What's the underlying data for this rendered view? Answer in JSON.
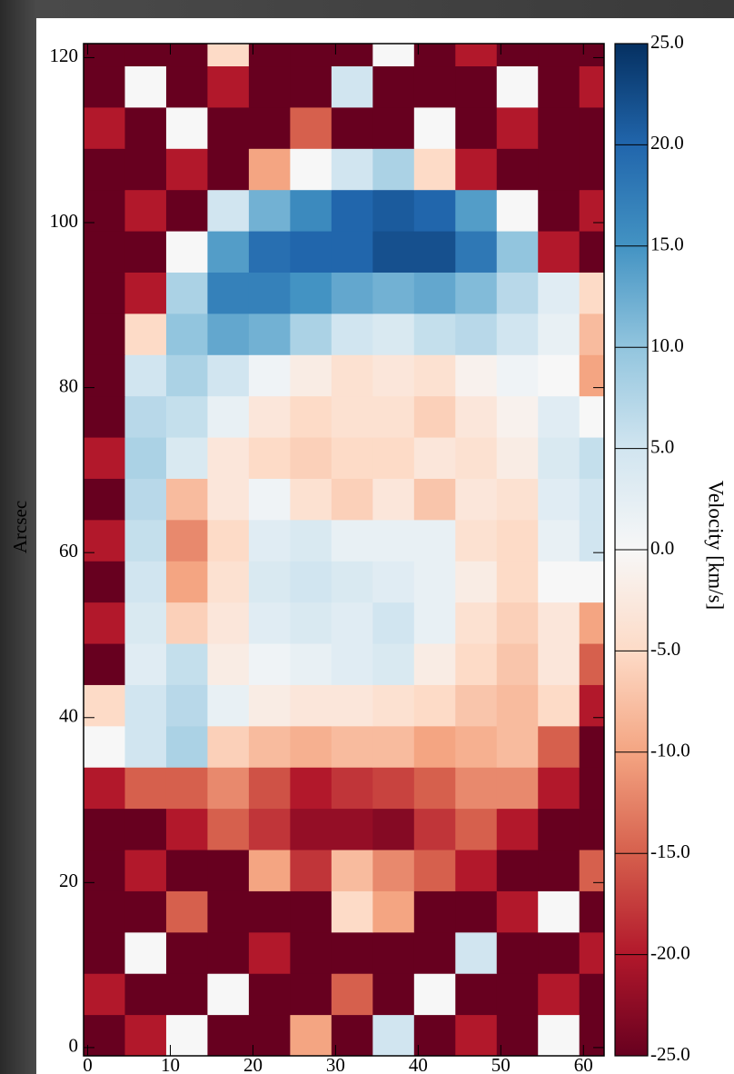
{
  "chart_data": {
    "type": "heatmap",
    "ylabel": "Arcsec",
    "colorbar_label": "Velocity [km/s]",
    "xlim": [
      -0.5,
      62.5
    ],
    "ylim": [
      -1,
      121.7
    ],
    "xticks": [
      0,
      10,
      20,
      30,
      40,
      50,
      60
    ],
    "yticks": [
      0,
      20,
      40,
      60,
      80,
      100,
      120
    ],
    "xbins": [
      -0.5,
      4.5,
      9.5,
      14.5,
      19.5,
      24.5,
      29.5,
      34.5,
      39.5,
      44.5,
      49.5,
      54.5,
      59.5,
      62.5
    ],
    "ybins": [
      -1,
      4,
      9,
      14,
      19,
      24,
      29,
      34,
      39,
      44,
      49,
      54,
      59,
      64,
      69,
      74,
      79,
      84,
      89,
      94,
      99,
      104,
      109,
      114,
      119,
      121.7
    ],
    "clim": [
      -25,
      25
    ],
    "cticks": [
      {
        "value": -25,
        "label": "-25.0"
      },
      {
        "value": -20,
        "label": "-20.0"
      },
      {
        "value": -15,
        "label": "-15.0"
      },
      {
        "value": -10,
        "label": "-10.0"
      },
      {
        "value": -5,
        "label": "-5.0"
      },
      {
        "value": 0,
        "label": "0.0"
      },
      {
        "value": 5,
        "label": "5.0"
      },
      {
        "value": 10,
        "label": "10.0"
      },
      {
        "value": 15,
        "label": "15.0"
      },
      {
        "value": 20,
        "label": "20.0"
      },
      {
        "value": 25,
        "label": "25.0"
      }
    ],
    "colormap": [
      "#67001f",
      "#b2182b",
      "#d6604d",
      "#f4a582",
      "#fddbc7",
      "#f7f7f7",
      "#d1e5f0",
      "#92c5de",
      "#4393c3",
      "#2166ac",
      "#053061"
    ],
    "values": [
      [
        -25,
        -20,
        0,
        -25,
        -25,
        -10,
        -25,
        5,
        -25,
        -20,
        -25,
        0,
        -25
      ],
      [
        -20,
        -25,
        -25,
        0,
        -25,
        -25,
        -15,
        -25,
        0,
        -25,
        -25,
        -20,
        -25
      ],
      [
        -25,
        0,
        -25,
        -25,
        -20,
        -25,
        -25,
        -25,
        -25,
        5,
        -25,
        -25,
        -20
      ],
      [
        -25,
        -25,
        -15,
        -25,
        -25,
        -25,
        -5,
        -10,
        -25,
        -25,
        -20,
        0,
        -25
      ],
      [
        -25,
        -20,
        -25,
        -25,
        -10,
        -18,
        -8,
        -12,
        -15,
        -20,
        -25,
        -25,
        -15
      ],
      [
        -25,
        -25,
        -20,
        -15,
        -18,
        -22,
        -22,
        -23,
        -18,
        -15,
        -20,
        -25,
        -25
      ],
      [
        -20,
        -15,
        -15,
        -12,
        -16,
        -20,
        -18,
        -17,
        -15,
        -12,
        -12,
        -20,
        -25
      ],
      [
        0,
        5,
        8,
        -6,
        -8,
        -9,
        -8,
        -8,
        -10,
        -9,
        -8,
        -15,
        -25
      ],
      [
        -5,
        5,
        7,
        2,
        -2,
        -3,
        -3,
        -4,
        -5,
        -7,
        -8,
        -5,
        -20
      ],
      [
        -25,
        3,
        6,
        -2,
        1,
        2,
        3,
        4,
        -2,
        -5,
        -7,
        -3,
        -15
      ],
      [
        -20,
        4,
        -6,
        -3,
        3,
        4,
        3,
        5,
        2,
        -4,
        -6,
        -3,
        -10
      ],
      [
        -25,
        5,
        -10,
        -4,
        4,
        5,
        4,
        3,
        2,
        -2,
        -5,
        0,
        0
      ],
      [
        -20,
        6,
        -12,
        -5,
        3,
        4,
        2,
        2,
        2,
        -4,
        -5,
        2,
        5
      ],
      [
        -25,
        7,
        -8,
        -3,
        1,
        -4,
        -6,
        -3,
        -7,
        -3,
        -4,
        3,
        5
      ],
      [
        -20,
        8,
        4,
        -3,
        -5,
        -6,
        -5,
        -5,
        -3,
        -4,
        -2,
        4,
        6
      ],
      [
        -25,
        7,
        6,
        2,
        -3,
        -5,
        -4,
        -4,
        -6,
        -3,
        -1,
        3,
        0
      ],
      [
        -25,
        5,
        8,
        5,
        1,
        -2,
        -4,
        -3,
        -4,
        -1,
        1,
        0,
        -10
      ],
      [
        -25,
        -5,
        10,
        13,
        12,
        8,
        5,
        4,
        6,
        7,
        5,
        2,
        -8
      ],
      [
        -25,
        -20,
        8,
        17,
        17,
        15,
        13,
        12,
        13,
        11,
        7,
        3,
        -5
      ],
      [
        -25,
        -25,
        0,
        14,
        19,
        20,
        20,
        22,
        22,
        18,
        10,
        -20,
        -25
      ],
      [
        -25,
        -20,
        -25,
        5,
        12,
        16,
        20,
        21,
        20,
        14,
        0,
        -25,
        -20
      ],
      [
        -25,
        -25,
        -20,
        -25,
        -10,
        0,
        5,
        8,
        -5,
        -20,
        -25,
        -25,
        -25
      ],
      [
        -20,
        -25,
        0,
        -25,
        -25,
        -15,
        -25,
        -25,
        0,
        -25,
        -20,
        -25,
        -25
      ],
      [
        -25,
        0,
        -25,
        -20,
        -25,
        -25,
        5,
        -25,
        -25,
        -25,
        0,
        -25,
        -20
      ],
      [
        -25,
        -25,
        -25,
        -5,
        -25,
        -25,
        -25,
        0,
        -25,
        -20,
        -25,
        -25,
        -25
      ]
    ]
  }
}
